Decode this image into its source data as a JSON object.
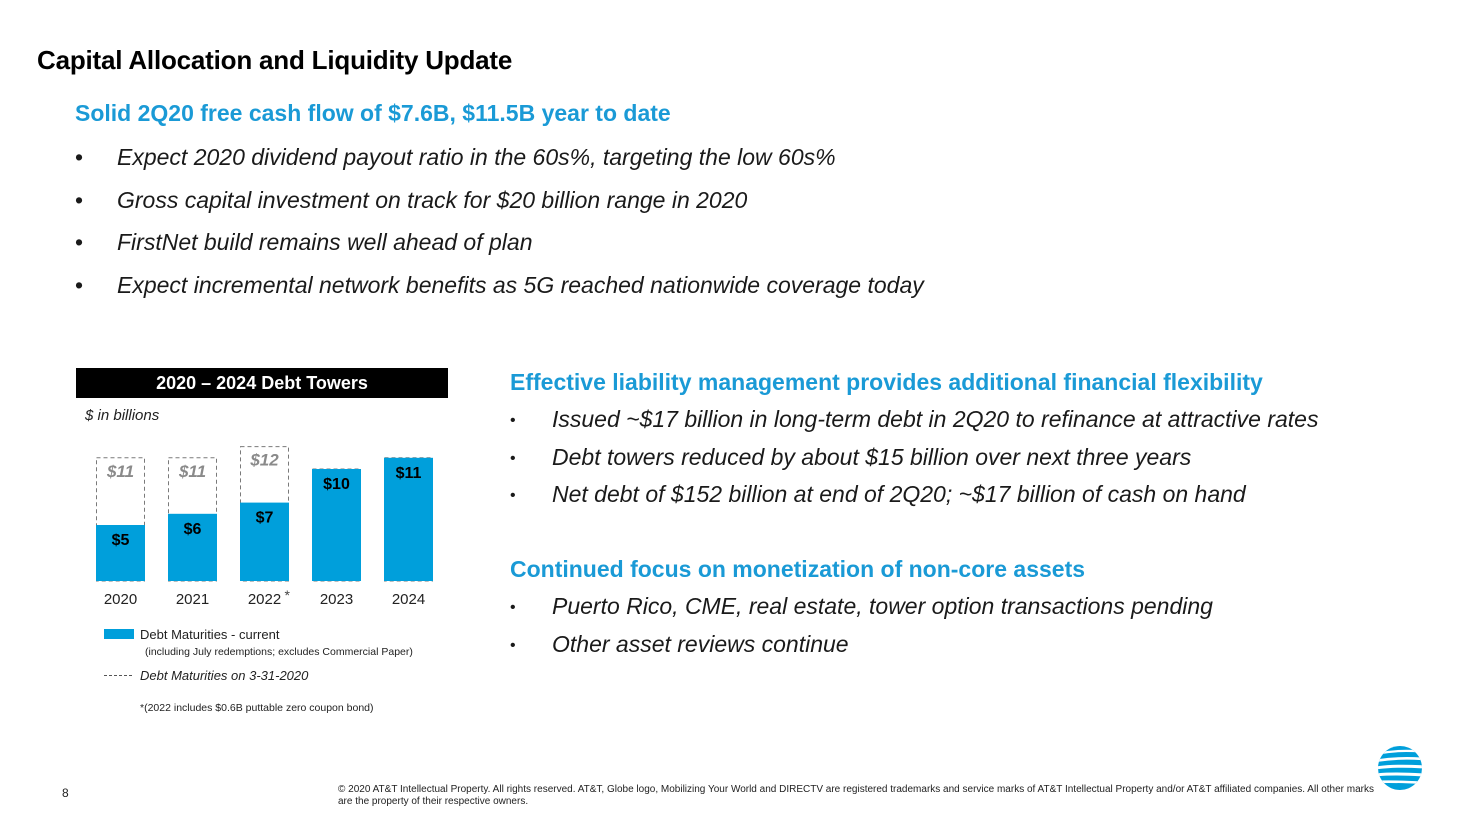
{
  "title": "Capital Allocation and Liquidity Update",
  "fcf_heading": "Solid 2Q20 free cash flow of $7.6B, $11.5B year to date",
  "top_bullets": [
    "Expect 2020 dividend payout ratio in the 60s%, targeting the low 60s%",
    "Gross capital investment on track for $20 billion range in 2020",
    "FirstNet build remains well ahead of plan",
    "Expect incremental network benefits as 5G reached nationwide coverage today"
  ],
  "liability": {
    "heading": "Effective liability management provides additional financial flexibility",
    "bullets": [
      "Issued ~$17 billion in long-term debt in 2Q20 to refinance at attractive rates",
      "Debt towers reduced by about $15 billion over next three years",
      "Net debt of $152 billion at end of 2Q20; ~$17 billion of cash on hand"
    ]
  },
  "monetization": {
    "heading": "Continued focus on monetization of non-core assets",
    "bullets": [
      "Puerto Rico, CME, real estate, tower option transactions pending",
      "Other asset reviews continue"
    ]
  },
  "chart_header": "2020 – 2024 Debt Towers",
  "chart_units": "$ in billions",
  "chart_data": {
    "type": "bar",
    "title": "2020 – 2024 Debt Towers",
    "ylabel": "$ in billions",
    "categories": [
      "2020",
      "2021",
      "2022",
      "2023",
      "2024"
    ],
    "category_marks": [
      "",
      "",
      "*",
      "",
      ""
    ],
    "series": [
      {
        "name": "Debt Maturities - current",
        "values": [
          5,
          6,
          7,
          10,
          11
        ],
        "labels": [
          "$5",
          "$6",
          "$7",
          "$10",
          "$11"
        ],
        "color": "#009fdb"
      },
      {
        "name": "Debt Maturities on 3-31-2020",
        "values": [
          11,
          11,
          12,
          10,
          11
        ],
        "labels": [
          "$11",
          "$11",
          "$12",
          "",
          ""
        ],
        "style": "dashed-outline"
      }
    ],
    "ylim": [
      0,
      13
    ]
  },
  "legend": {
    "current_label": "Debt Maturities - current",
    "current_note": "(including July redemptions; excludes Commercial Paper)",
    "prior_label": "Debt Maturities on 3-31-2020",
    "footnote": "*(2022 includes $0.6B puttable zero coupon bond)"
  },
  "page_number": "8",
  "copyright": "© 2020 AT&T Intellectual Property. All rights reserved. AT&T, Globe logo, Mobilizing Your World and DIRECTV are registered trademarks and service marks of AT&T Intellectual Property and/or AT&T affiliated companies. All other marks are the property of their respective owners.",
  "logo": {
    "icon": "att-globe-icon",
    "color": "#009fdb"
  }
}
